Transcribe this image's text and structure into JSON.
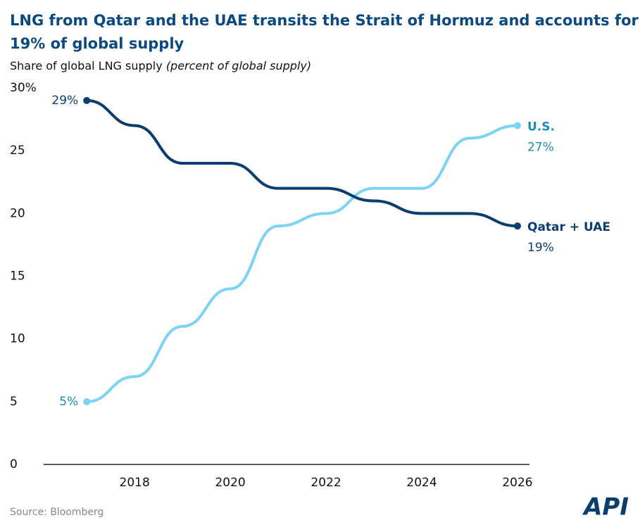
{
  "chart_data": {
    "type": "line",
    "title": "LNG from Qatar and the UAE transits the Strait of Hormuz and accounts for 19% of global supply",
    "subtitle": "Share of global LNG supply",
    "subtitle_note": "(percent of global supply)",
    "x": [
      2017,
      2018,
      2019,
      2020,
      2021,
      2022,
      2023,
      2024,
      2025,
      2026
    ],
    "series": [
      {
        "name": "Qatar + UAE",
        "color": "#0b3d6f",
        "values": [
          29,
          27,
          24,
          24,
          22,
          22,
          21,
          20,
          20,
          19
        ],
        "value_labels": [
          "29%",
          null,
          null,
          null,
          null,
          null,
          null,
          null,
          null,
          "19%"
        ]
      },
      {
        "name": "U.S.",
        "color": "#7dd3f5",
        "label_color": "#1b8fb3",
        "values": [
          5,
          7,
          11,
          14,
          19,
          20,
          22,
          22,
          26,
          27
        ],
        "value_labels": [
          "5%",
          null,
          null,
          null,
          null,
          null,
          null,
          null,
          null,
          "27%"
        ]
      }
    ],
    "xlim": [
      2016.1,
      2026.25
    ],
    "xticks": [
      2018,
      2020,
      2022,
      2024,
      2026
    ],
    "ylim": [
      0,
      30
    ],
    "yticks": [
      0,
      5,
      10,
      15,
      20,
      25,
      {
        "value": 30,
        "label": "30%"
      }
    ],
    "grid": false,
    "source": "Source: Bloomberg",
    "logo": "API"
  }
}
